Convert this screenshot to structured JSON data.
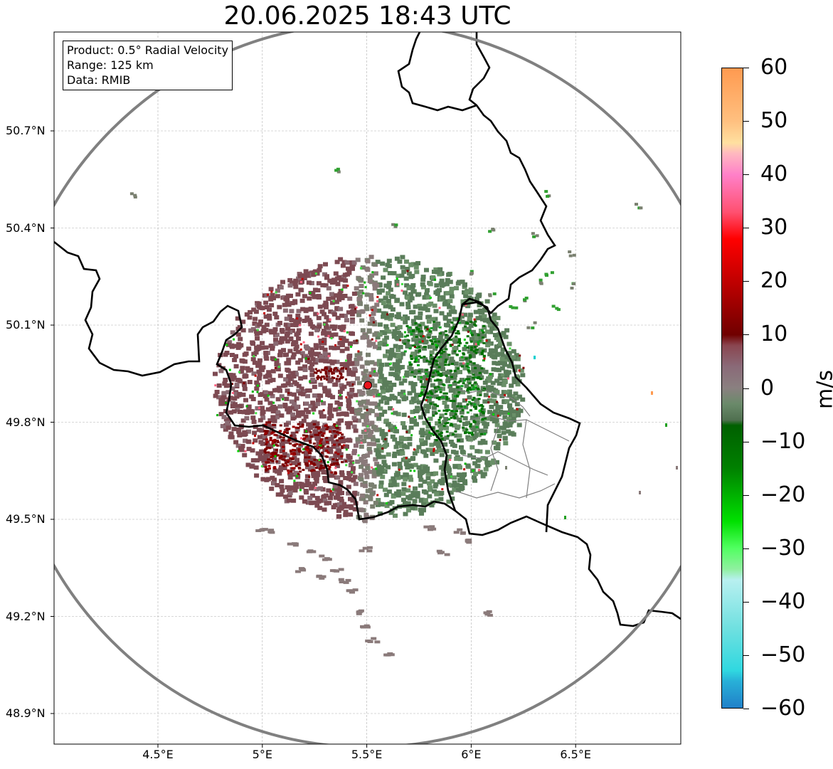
{
  "title": "20.06.2025 18:43 UTC",
  "info_box": {
    "product": "Product: 0.5° Radial Velocity",
    "range": "Range: 125 km",
    "data_source": "Data: RMIB"
  },
  "map": {
    "lon_range": [
      4.0,
      7.0
    ],
    "lat_range": [
      48.8,
      51.0
    ],
    "radar_site": {
      "lon": 5.505,
      "lat": 49.914
    },
    "range_km": 125,
    "lat_ticks": [
      "50.7°N",
      "50.4°N",
      "50.1°N",
      "49.8°N",
      "49.5°N",
      "49.2°N",
      "48.9°N"
    ],
    "lat_tick_values": [
      50.7,
      50.4,
      50.1,
      49.8,
      49.5,
      49.2,
      48.9
    ],
    "lon_ticks": [
      "4.5°E",
      "5°E",
      "5.5°E",
      "6°E",
      "6.5°E"
    ],
    "lon_tick_values": [
      4.5,
      5.0,
      5.5,
      6.0,
      6.5
    ],
    "grid": true,
    "colors": {
      "range_ring": "#808080",
      "borders": "#000000",
      "admin_borders": "#808080",
      "radar_marker": "#e8141c",
      "inbound_green": "#5a7d5a",
      "outbound_maroon": "#7d4a52",
      "strong_green": "#007000",
      "strong_red": "#7a0000"
    }
  },
  "colorbar": {
    "unit": "m/s",
    "ticks": [
      "60",
      "50",
      "40",
      "30",
      "20",
      "10",
      "0",
      "−10",
      "−20",
      "−30",
      "−40",
      "−50",
      "−60"
    ],
    "tick_values": [
      60,
      50,
      40,
      30,
      20,
      10,
      0,
      -10,
      -20,
      -30,
      -40,
      -50,
      -60
    ],
    "range": [
      -60,
      60
    ],
    "stops": [
      {
        "value": 60,
        "color": "#ff9a50"
      },
      {
        "value": 50,
        "color": "#ffc080"
      },
      {
        "value": 46,
        "color": "#ffe0a0"
      },
      {
        "value": 44,
        "color": "#ffb8c0"
      },
      {
        "value": 40,
        "color": "#ff80c8"
      },
      {
        "value": 33,
        "color": "#ff5070"
      },
      {
        "value": 28,
        "color": "#ff0000"
      },
      {
        "value": 20,
        "color": "#c00000"
      },
      {
        "value": 14,
        "color": "#900000"
      },
      {
        "value": 10,
        "color": "#700000"
      },
      {
        "value": 8,
        "color": "#8a4650"
      },
      {
        "value": 4,
        "color": "#8a6a78"
      },
      {
        "value": 0,
        "color": "#8a8080"
      },
      {
        "value": -3,
        "color": "#6a8a6a"
      },
      {
        "value": -6,
        "color": "#507050"
      },
      {
        "value": -7,
        "color": "#006000"
      },
      {
        "value": -15,
        "color": "#008000"
      },
      {
        "value": -25,
        "color": "#00e000"
      },
      {
        "value": -30,
        "color": "#50ff60"
      },
      {
        "value": -34,
        "color": "#90f0a0"
      },
      {
        "value": -36,
        "color": "#b8f0f0"
      },
      {
        "value": -45,
        "color": "#70e0e0"
      },
      {
        "value": -53,
        "color": "#30d8e0"
      },
      {
        "value": -55,
        "color": "#28b0d8"
      },
      {
        "value": -60,
        "color": "#2080c8"
      }
    ]
  }
}
